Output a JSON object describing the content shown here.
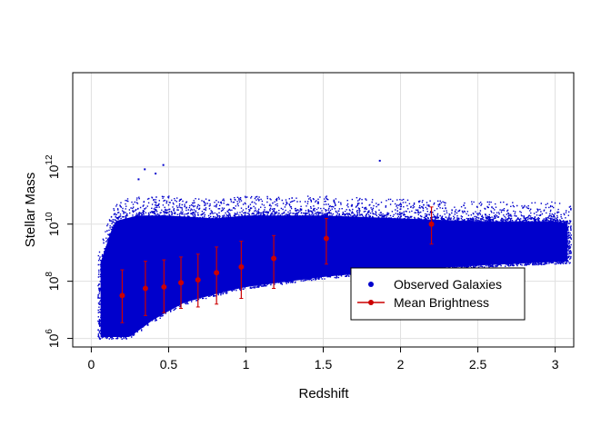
{
  "chart_data": {
    "type": "scatter",
    "title": "",
    "xlabel": "Redshift",
    "ylabel": "Stellar Mass",
    "y_scale": "log10",
    "xlim": [
      -0.12,
      3.12
    ],
    "ylim_log10": [
      5.7,
      15.3
    ],
    "grid": true,
    "x_ticks": [
      {
        "value": 0,
        "label": "0"
      },
      {
        "value": 0.5,
        "label": "0.5"
      },
      {
        "value": 1,
        "label": "1"
      },
      {
        "value": 1.5,
        "label": "1.5"
      },
      {
        "value": 2,
        "label": "2"
      },
      {
        "value": 2.5,
        "label": "2.5"
      },
      {
        "value": 3,
        "label": "3"
      }
    ],
    "y_ticks": [
      {
        "value": 6,
        "base": "10",
        "exp": "6"
      },
      {
        "value": 8,
        "base": "10",
        "exp": "8"
      },
      {
        "value": 10,
        "base": "10",
        "exp": "10"
      },
      {
        "value": 12,
        "base": "10",
        "exp": "12"
      }
    ],
    "legend": {
      "placement": "bottom-right",
      "entries": [
        {
          "label": "Observed Galaxies",
          "color": "#0000cc",
          "marker": "dot"
        },
        {
          "label": "Mean Brightness",
          "color": "#cc0000",
          "marker": "line-dot"
        }
      ]
    },
    "series": [
      {
        "name": "Observed Galaxies",
        "color": "#0000cc",
        "kind": "dense-point-cloud",
        "x_range": [
          0.04,
          3.1
        ],
        "upper_envelope_log10": [
          [
            0.05,
            9.2
          ],
          [
            0.15,
            10.8
          ],
          [
            0.3,
            11.0
          ],
          [
            0.5,
            11.0
          ],
          [
            0.8,
            10.9
          ],
          [
            1.0,
            11.0
          ],
          [
            1.5,
            11.0
          ],
          [
            2.0,
            10.9
          ],
          [
            2.5,
            10.8
          ],
          [
            3.0,
            10.8
          ],
          [
            3.1,
            10.7
          ]
        ],
        "lower_envelope_log10": [
          [
            0.04,
            6.0
          ],
          [
            0.25,
            6.0
          ],
          [
            0.4,
            6.6
          ],
          [
            0.6,
            7.2
          ],
          [
            0.8,
            7.5
          ],
          [
            1.0,
            7.75
          ],
          [
            1.5,
            8.1
          ],
          [
            2.0,
            8.35
          ],
          [
            2.5,
            8.5
          ],
          [
            3.1,
            8.65
          ]
        ]
      },
      {
        "name": "Mean Brightness",
        "color": "#cc0000",
        "kind": "points-with-errorbars",
        "x": [
          0.2,
          0.35,
          0.47,
          0.58,
          0.69,
          0.81,
          0.97,
          1.18,
          1.52,
          2.2
        ],
        "y_log10": [
          7.5,
          7.75,
          7.8,
          7.95,
          8.05,
          8.3,
          8.5,
          8.8,
          9.5,
          10.0
        ],
        "err_low_log10": [
          6.55,
          6.8,
          6.9,
          7.05,
          7.1,
          7.2,
          7.4,
          7.75,
          8.6,
          9.3
        ],
        "err_high_log10": [
          8.4,
          8.7,
          8.75,
          8.85,
          8.95,
          9.2,
          9.4,
          9.6,
          10.2,
          10.6
        ]
      }
    ],
    "outliers_log10": [
      [
        0.34,
        11.95
      ],
      [
        0.46,
        12.1
      ],
      [
        1.86,
        12.25
      ],
      [
        0.41,
        11.8
      ],
      [
        0.3,
        11.6
      ]
    ]
  }
}
